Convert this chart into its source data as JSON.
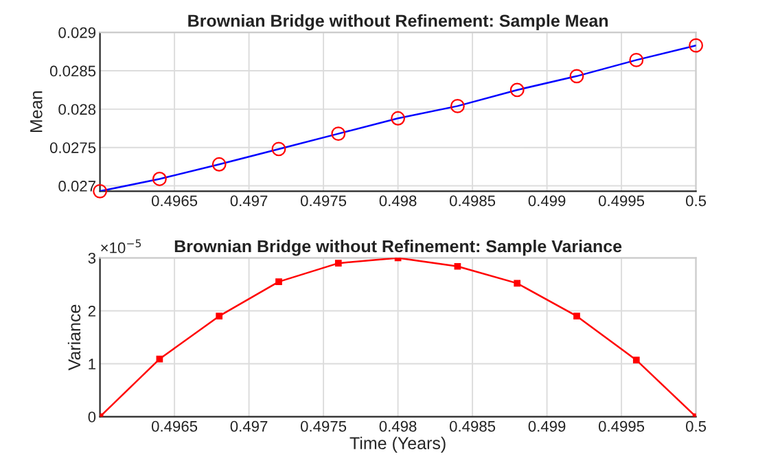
{
  "chart_data": [
    {
      "type": "line",
      "title": "Brownian Bridge without Refinement: Sample Mean",
      "ylabel": "Mean",
      "x": [
        0.496,
        0.4964,
        0.4968,
        0.4972,
        0.4976,
        0.498,
        0.4984,
        0.4988,
        0.4992,
        0.4996,
        0.5
      ],
      "series": [
        {
          "color": "#0000ff",
          "marker": "none",
          "values": [
            0.02693,
            0.02709,
            0.02728,
            0.02748,
            0.02768,
            0.02788,
            0.02804,
            0.02825,
            0.02843,
            0.02864,
            0.02883
          ]
        },
        {
          "type": "scatter",
          "color": "#ff0000",
          "marker": "circle",
          "values": [
            0.02693,
            0.02709,
            0.02728,
            0.02748,
            0.02768,
            0.02788,
            0.02804,
            0.02825,
            0.02843,
            0.02864,
            0.02883
          ]
        }
      ],
      "xlim": [
        0.496,
        0.5
      ],
      "xticks": [
        0.4965,
        0.497,
        0.4975,
        0.498,
        0.4985,
        0.499,
        0.4995,
        0.5
      ],
      "ylim": [
        0.02693,
        0.029
      ],
      "yticks": [
        0.027,
        0.0275,
        0.028,
        0.0285,
        0.029
      ],
      "grid": true
    },
    {
      "type": "line",
      "title": "Brownian Bridge without Refinement: Sample Variance",
      "xlabel": "Time (Years)",
      "ylabel": "Variance",
      "annotations": [
        "×10$^{−5}$"
      ],
      "x": [
        0.496,
        0.4964,
        0.4968,
        0.4972,
        0.4976,
        0.498,
        0.4984,
        0.4988,
        0.4992,
        0.4996,
        0.5
      ],
      "series": [
        {
          "color": "#ff0000",
          "marker": "square",
          "values": [
            0,
            1.09,
            1.9,
            2.55,
            2.9,
            3.0,
            2.84,
            2.52,
            1.9,
            1.07,
            0
          ]
        }
      ],
      "xlim": [
        0.496,
        0.5
      ],
      "xticks": [
        0.4965,
        0.497,
        0.4975,
        0.498,
        0.4985,
        0.499,
        0.4995,
        0.5
      ],
      "ylim": [
        0,
        3
      ],
      "yticks": [
        0,
        1,
        2,
        3
      ],
      "grid": true
    }
  ]
}
